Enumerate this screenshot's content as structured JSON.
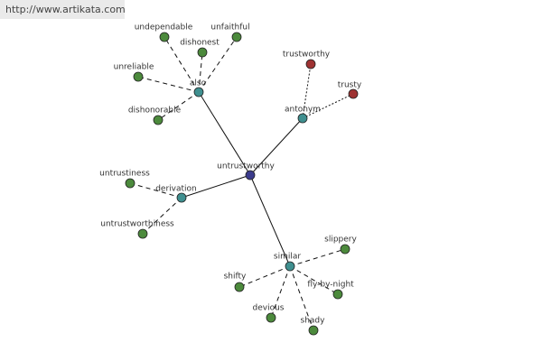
{
  "header": {
    "url": "http://www.artikata.com"
  },
  "nodes": [
    {
      "label": "untrustworthy"
    },
    {
      "label": "also"
    },
    {
      "label": "antonym"
    },
    {
      "label": "derivation"
    },
    {
      "label": "similar"
    },
    {
      "label": "undependable"
    },
    {
      "label": "unfaithful"
    },
    {
      "label": "dishonest"
    },
    {
      "label": "unreliable"
    },
    {
      "label": "dishonorable"
    },
    {
      "label": "trustworthy"
    },
    {
      "label": "trusty"
    },
    {
      "label": "untrustiness"
    },
    {
      "label": "untrustworthiness"
    },
    {
      "label": "slippery"
    },
    {
      "label": "shifty"
    },
    {
      "label": "fly-by-night"
    },
    {
      "label": "devious"
    },
    {
      "label": "shady"
    }
  ]
}
